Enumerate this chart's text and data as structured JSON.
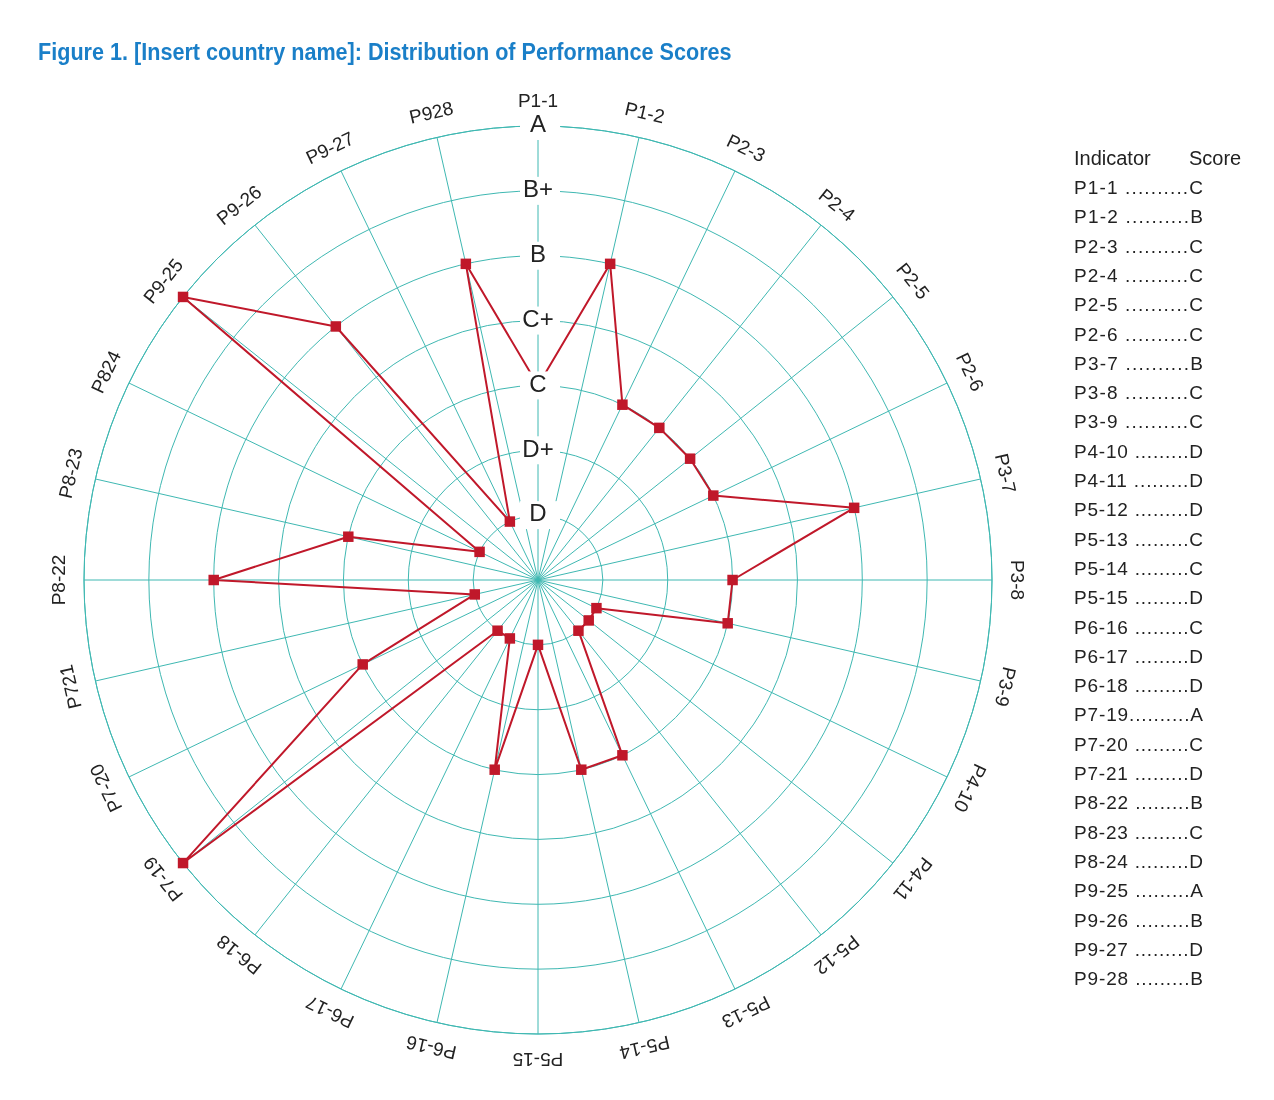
{
  "chart_data": {
    "type": "radar",
    "title": "Figure 1. [Insert country name]: Distribution of Performance Scores",
    "categories": [
      "P1-1",
      "P1-2",
      "P2-3",
      "P2-4",
      "P2-5",
      "P2-6",
      "P3-7",
      "P3-8",
      "P3-9",
      "P4-10",
      "P4-11",
      "P5-12",
      "P5-13",
      "P5-14",
      "P5-15",
      "P6-16",
      "P6-17",
      "P6-18",
      "P7-19",
      "P7-20",
      "P721",
      "P8-22",
      "P8-23",
      "P824",
      "P9-25",
      "P9-26",
      "P9-27",
      "P928"
    ],
    "series": [
      {
        "color": "#c0182a",
        "values": [
          3,
          5,
          3,
          3,
          3,
          3,
          5,
          3,
          3,
          1,
          1,
          1,
          3,
          3,
          1,
          3,
          1,
          1,
          7,
          3,
          1,
          5,
          3,
          1,
          7,
          5,
          1,
          5
        ]
      }
    ],
    "ylim": [
      0,
      7
    ],
    "yticks": [
      {
        "value": 1,
        "label": "D"
      },
      {
        "value": 2,
        "label": "D+"
      },
      {
        "value": 3,
        "label": "C"
      },
      {
        "value": 4,
        "label": "C+"
      },
      {
        "value": 5,
        "label": "B"
      },
      {
        "value": 6,
        "label": "B+"
      },
      {
        "value": 7,
        "label": "A"
      }
    ],
    "grid": true,
    "marker": "square",
    "annotations": [
      "Indicator",
      "Score",
      "P1-1 ..........C",
      "P1-2 ..........B",
      "P2-3 ..........C",
      "P2-4 ..........C",
      "P2-5 ..........C",
      "P2-6 ..........C",
      "P3-7 ..........B",
      "P3-8 ..........C",
      "P3-9 ..........C",
      "P4-10 .........D",
      "P4-11 .........D",
      "P5-12 .........D",
      "P5-13 .........C",
      "P5-14 .........C",
      "P5-15 .........D",
      "P6-16 .........C",
      "P6-17 .........D",
      "P6-18 .........D",
      "P7-19..........A",
      "P7-20 .........C",
      "P7-21 .........D",
      "P8-22 .........B",
      "P8-23 .........C",
      "P8-24 .........D",
      "P9-25 .........A",
      "P9-26 .........B",
      "P9-27 .........D",
      "P9-28 .........B"
    ]
  }
}
